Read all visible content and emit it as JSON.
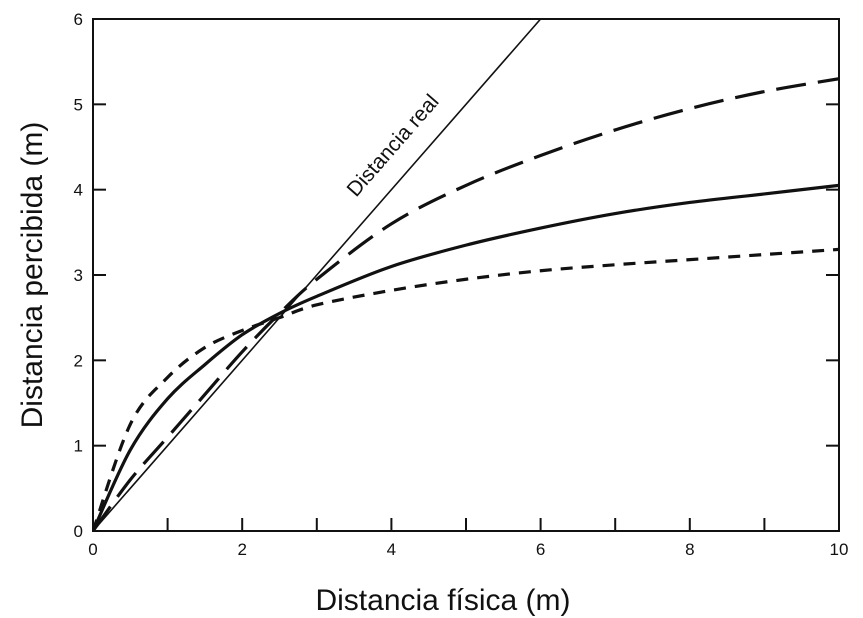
{
  "chart_data": {
    "type": "line",
    "xlabel": "Distancia física (m)",
    "ylabel": "Distancia percibida (m)",
    "xlim": [
      0,
      10
    ],
    "ylim": [
      0,
      6
    ],
    "x_ticks": [
      0,
      2,
      4,
      6,
      8,
      10
    ],
    "x_minor_ticks": [
      1,
      3,
      5,
      7,
      9
    ],
    "y_ticks": [
      0,
      1,
      2,
      3,
      4,
      5,
      6
    ],
    "grid": false,
    "legend": "none",
    "annotations": [
      {
        "text": "Distancia real",
        "series_index": 0
      }
    ],
    "series": [
      {
        "style": "solid-thin",
        "x": [
          0,
          6
        ],
        "y": [
          0,
          6
        ]
      },
      {
        "style": "long-dash",
        "x": [
          0,
          0.5,
          1,
          1.5,
          2,
          2.5,
          3,
          4,
          5,
          6,
          7,
          8,
          9,
          10
        ],
        "y": [
          0,
          0.6,
          1.1,
          1.6,
          2.1,
          2.55,
          2.95,
          3.6,
          4.05,
          4.4,
          4.7,
          4.95,
          5.15,
          5.3
        ]
      },
      {
        "style": "solid-thick",
        "x": [
          0,
          0.5,
          1,
          1.5,
          2,
          2.5,
          3,
          4,
          5,
          6,
          7,
          8,
          9,
          10
        ],
        "y": [
          0,
          0.95,
          1.55,
          1.95,
          2.3,
          2.55,
          2.75,
          3.1,
          3.35,
          3.55,
          3.72,
          3.85,
          3.95,
          4.05
        ]
      },
      {
        "style": "short-dash",
        "x": [
          0,
          0.5,
          1,
          1.5,
          2,
          2.5,
          3,
          4,
          5,
          6,
          7,
          8,
          9,
          10
        ],
        "y": [
          0,
          1.25,
          1.8,
          2.15,
          2.35,
          2.5,
          2.65,
          2.82,
          2.95,
          3.05,
          3.12,
          3.18,
          3.24,
          3.3
        ]
      }
    ]
  }
}
